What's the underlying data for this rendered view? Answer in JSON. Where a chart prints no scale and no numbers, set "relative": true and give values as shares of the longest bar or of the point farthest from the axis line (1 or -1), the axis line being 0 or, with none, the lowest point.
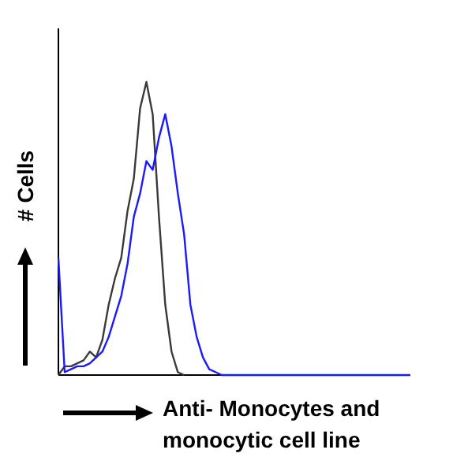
{
  "chart_data": {
    "type": "line",
    "relative": true,
    "xlabel": "Anti- Monocytes and monocytic cell line",
    "ylabel": "# Cells",
    "marker": "none",
    "line_style": "solid",
    "grid": false,
    "categories": [
      null,
      null,
      null,
      null,
      null,
      null,
      null,
      null,
      null,
      null,
      null,
      null,
      null,
      null,
      null,
      null,
      null,
      null,
      null,
      null,
      null,
      null,
      null,
      null,
      null,
      null,
      null,
      null,
      null,
      null,
      null,
      null,
      null,
      null,
      null,
      null,
      null,
      null,
      null,
      null,
      null,
      null,
      null,
      null,
      null,
      null,
      null,
      null,
      null,
      null,
      null,
      null,
      null,
      null,
      null,
      null,
      null
    ],
    "series": [
      {
        "color": "#3a3a3a",
        "values": [
          0,
          0.03,
          0.03,
          0.04,
          0.05,
          0.08,
          0.06,
          0.12,
          0.24,
          0.33,
          0.4,
          0.56,
          0.67,
          0.91,
          1,
          0.89,
          0.54,
          0.24,
          0.08,
          0.01,
          0,
          null,
          null,
          null,
          null,
          null,
          null,
          null,
          null,
          null,
          null,
          null,
          null,
          null,
          null,
          null,
          null,
          null,
          null,
          null,
          null,
          null,
          null,
          null,
          null,
          null,
          null,
          null,
          null,
          null,
          null,
          null,
          null,
          null,
          null,
          null,
          null
        ]
      },
      {
        "color": "#1a1aff",
        "values": [
          0.4,
          0.01,
          0.02,
          0.03,
          0.03,
          0.04,
          0.06,
          0.08,
          0.13,
          0.2,
          0.27,
          0.38,
          0.54,
          0.62,
          0.73,
          0.7,
          0.81,
          0.89,
          0.78,
          0.62,
          0.48,
          0.24,
          0.13,
          0.06,
          0.02,
          0.01,
          0,
          0,
          0,
          0,
          0,
          0,
          0,
          0,
          0,
          0,
          0,
          0,
          0,
          0,
          0,
          0,
          0,
          0,
          0,
          0,
          0,
          0,
          0,
          0,
          0,
          0,
          0,
          0,
          0,
          0,
          0
        ]
      }
    ]
  }
}
